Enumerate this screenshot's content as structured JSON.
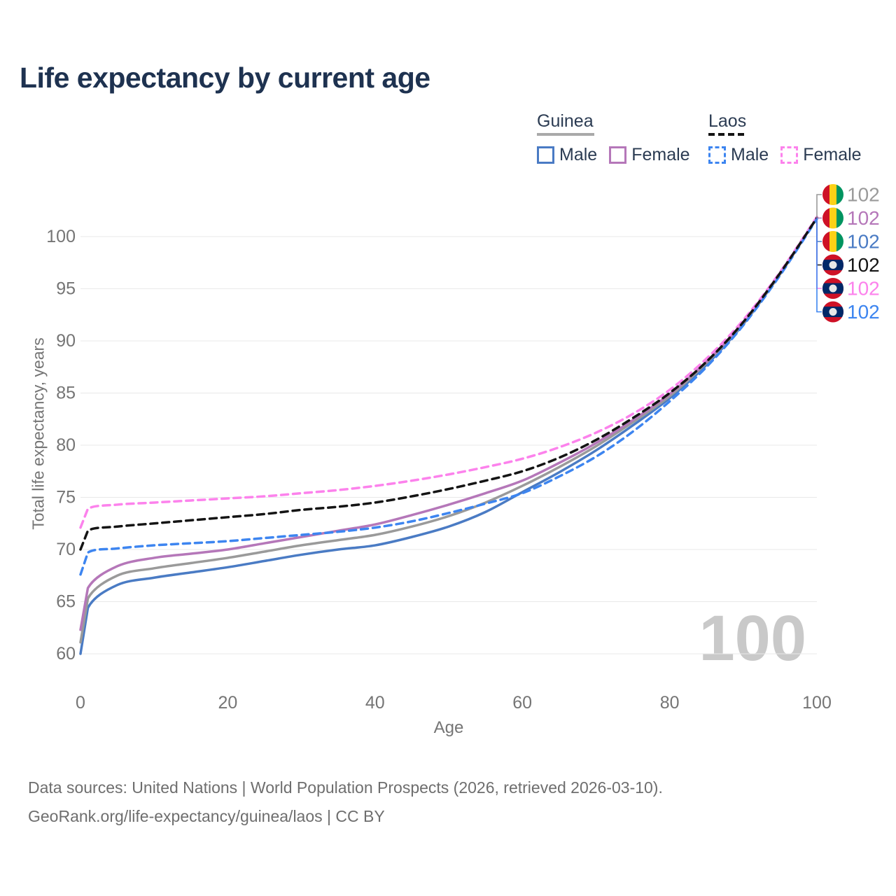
{
  "title": "Life expectancy by current age",
  "legend": {
    "groups": [
      {
        "label": "Guinea",
        "underline_style": "solid",
        "underline_color": "#a9a9a9",
        "items": [
          {
            "label": "Male",
            "color": "#4a7bc4",
            "line_style": "solid"
          },
          {
            "label": "Female",
            "color": "#b577b9",
            "line_style": "solid"
          }
        ]
      },
      {
        "label": "Laos",
        "underline_style": "dashed",
        "underline_color": "#141414",
        "items": [
          {
            "label": "Male",
            "color": "#3d85f0",
            "line_style": "dashed"
          },
          {
            "label": "Female",
            "color": "#fc82ec",
            "line_style": "dashed"
          }
        ]
      }
    ]
  },
  "chart_data": {
    "type": "line",
    "title": "Life expectancy by current age",
    "xlabel": "Age",
    "ylabel": "Total life expectancy, years",
    "xlim": [
      0,
      100
    ],
    "ylim": [
      60,
      102
    ],
    "xticks": [
      0,
      20,
      40,
      60,
      80,
      100
    ],
    "yticks": [
      60,
      65,
      70,
      75,
      80,
      85,
      90,
      95,
      100
    ],
    "grid": "horizontal",
    "grid_color": "#e9e9e9",
    "tick_color": "#757575",
    "x": [
      0,
      1,
      5,
      10,
      15,
      20,
      25,
      30,
      35,
      40,
      45,
      50,
      55,
      60,
      65,
      70,
      75,
      80,
      85,
      90,
      95,
      100
    ],
    "series": [
      {
        "key": "guinea_male",
        "name": "Guinea Male",
        "color": "#4a7bc4",
        "dash": false,
        "values": [
          60.0,
          64.4,
          66.6,
          67.3,
          67.8,
          68.3,
          68.9,
          69.5,
          70.0,
          70.4,
          71.2,
          72.2,
          73.6,
          75.5,
          77.4,
          79.5,
          81.9,
          84.5,
          87.7,
          91.6,
          96.4,
          101.8
        ]
      },
      {
        "key": "guinea_avg",
        "name": "Guinea",
        "color": "#9a9a9a",
        "dash": false,
        "values": [
          61.1,
          65.3,
          67.5,
          68.2,
          68.7,
          69.2,
          69.8,
          70.4,
          70.9,
          71.4,
          72.2,
          73.2,
          74.5,
          76.1,
          77.9,
          79.9,
          82.2,
          84.7,
          87.9,
          91.7,
          96.4,
          101.8
        ]
      },
      {
        "key": "guinea_female",
        "name": "Guinea Female",
        "color": "#b577b9",
        "dash": false,
        "values": [
          62.3,
          66.3,
          68.4,
          69.2,
          69.6,
          70.0,
          70.6,
          71.2,
          71.8,
          72.4,
          73.3,
          74.3,
          75.4,
          76.6,
          78.3,
          80.2,
          82.4,
          84.9,
          88.0,
          91.8,
          96.5,
          101.8
        ]
      },
      {
        "key": "laos_female",
        "name": "Laos Female",
        "color": "#fc82ec",
        "dash": true,
        "values": [
          72.1,
          73.9,
          74.3,
          74.5,
          74.7,
          74.9,
          75.1,
          75.4,
          75.7,
          76.1,
          76.6,
          77.2,
          77.9,
          78.7,
          79.8,
          81.2,
          83.0,
          85.3,
          88.3,
          92.0,
          96.6,
          101.9
        ]
      },
      {
        "key": "laos_male",
        "name": "Laos Male",
        "color": "#3d85f0",
        "dash": true,
        "values": [
          67.6,
          69.7,
          70.1,
          70.4,
          70.6,
          70.8,
          71.1,
          71.4,
          71.7,
          72.1,
          72.7,
          73.5,
          74.4,
          75.4,
          77.0,
          78.9,
          81.3,
          84.2,
          87.5,
          91.5,
          96.3,
          101.7
        ]
      },
      {
        "key": "laos_avg",
        "name": "Laos",
        "color": "#141414",
        "dash": true,
        "values": [
          70.0,
          71.8,
          72.2,
          72.5,
          72.8,
          73.1,
          73.4,
          73.8,
          74.1,
          74.5,
          75.1,
          75.8,
          76.6,
          77.5,
          78.8,
          80.5,
          82.6,
          85.0,
          88.0,
          91.8,
          96.5,
          101.8
        ]
      }
    ]
  },
  "end_labels": [
    {
      "icon": "guinea-flag-icon",
      "value": "102",
      "color": "#9a9a9a",
      "series": "guinea_avg"
    },
    {
      "icon": "guinea-flag-icon",
      "value": "102",
      "color": "#b577b9",
      "series": "guinea_female"
    },
    {
      "icon": "guinea-flag-icon",
      "value": "102",
      "color": "#4a7bc4",
      "series": "guinea_male"
    },
    {
      "icon": "laos-flag-icon",
      "value": "102",
      "color": "#141414",
      "series": "laos_avg"
    },
    {
      "icon": "laos-flag-icon",
      "value": "102",
      "color": "#fc82ec",
      "series": "laos_female"
    },
    {
      "icon": "laos-flag-icon",
      "value": "102",
      "color": "#3d85f0",
      "series": "laos_male"
    }
  ],
  "age_indicator": "100",
  "footer": {
    "line1": "Data sources: United Nations | World Population Prospects (2026, retrieved 2026-03-10).",
    "line2": "GeoRank.org/life-expectancy/guinea/laos | CC BY"
  }
}
